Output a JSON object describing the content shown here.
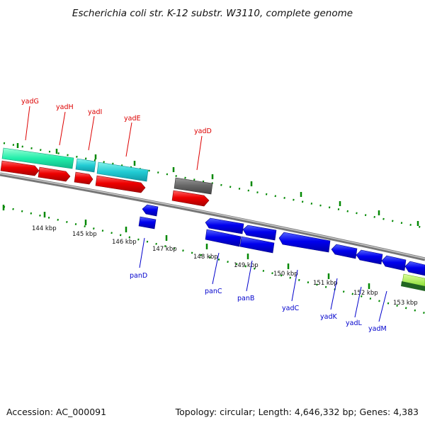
{
  "title": "Escherichia coli str. K-12 substr. W3110, complete genome",
  "footer": {
    "accession": "Accession: AC_000091",
    "topology": "Topology: circular; Length: 4,646,332 bp; Genes: 4,383"
  },
  "ticks": [
    "144 kbp",
    "145 kbp",
    "146 kbp",
    "147 kbp",
    "148 kbp",
    "149 kbp",
    "150 kbp",
    "151 kbp",
    "152 kbp",
    "153 kbp"
  ],
  "colors": {
    "forward_label": "#dd0000",
    "reverse_label": "#0000cc",
    "tick": "#008800",
    "backbone": "#888888",
    "forward_cds": "#ee0000",
    "reverse_cds": "#0000ee",
    "teal_feature": "#22ddcc",
    "seafoam_feature": "#22eeaa",
    "grey_feature": "#666666",
    "lime_feature": "#99ee44",
    "dark_green_feature": "#226622"
  },
  "genes": {
    "forward": [
      "yadG",
      "yadH",
      "yadI",
      "yadE",
      "yadD"
    ],
    "reverse": [
      "panD",
      "panC",
      "panB",
      "yadC",
      "yadK",
      "yadL",
      "yadM"
    ]
  }
}
